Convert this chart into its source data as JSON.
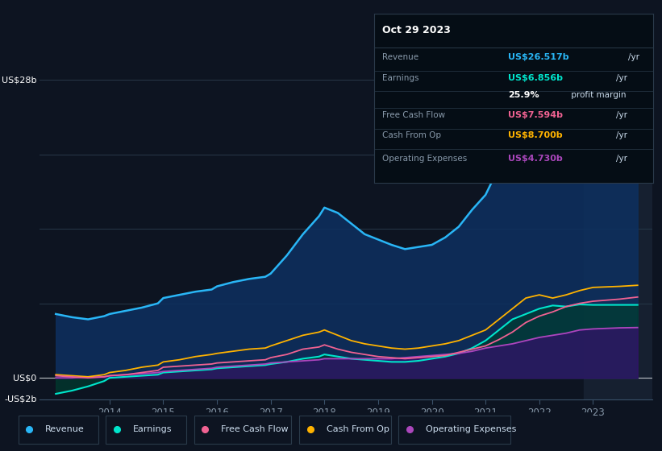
{
  "bg_color": "#0d1421",
  "plot_bg_color": "#0d1421",
  "text_color": "#8899aa",
  "grid_color": "#1a2a3a",
  "zero_line_color": "#ffffff",
  "ylim": [
    -2,
    30
  ],
  "xlim": [
    2012.7,
    2024.1
  ],
  "revenue": {
    "x": [
      2013.0,
      2013.3,
      2013.6,
      2013.9,
      2014.0,
      2014.3,
      2014.6,
      2014.9,
      2015.0,
      2015.3,
      2015.6,
      2015.9,
      2016.0,
      2016.3,
      2016.6,
      2016.9,
      2017.0,
      2017.3,
      2017.6,
      2017.9,
      2018.0,
      2018.25,
      2018.5,
      2018.75,
      2019.0,
      2019.25,
      2019.5,
      2019.75,
      2020.0,
      2020.25,
      2020.5,
      2020.75,
      2021.0,
      2021.25,
      2021.5,
      2021.75,
      2022.0,
      2022.25,
      2022.5,
      2022.75,
      2023.0,
      2023.5,
      2023.83
    ],
    "y": [
      6.0,
      5.7,
      5.5,
      5.8,
      6.0,
      6.3,
      6.6,
      7.0,
      7.5,
      7.8,
      8.1,
      8.3,
      8.6,
      9.0,
      9.3,
      9.5,
      9.8,
      11.5,
      13.5,
      15.2,
      16.0,
      15.5,
      14.5,
      13.5,
      13.0,
      12.5,
      12.1,
      12.3,
      12.5,
      13.2,
      14.2,
      15.8,
      17.2,
      19.8,
      22.2,
      24.2,
      26.0,
      27.0,
      27.5,
      27.8,
      27.5,
      27.0,
      26.517
    ],
    "color": "#29b6f6",
    "fill_color": "#0d3060",
    "fill_alpha": 0.85
  },
  "earnings": {
    "x": [
      2013.0,
      2013.3,
      2013.6,
      2013.9,
      2014.0,
      2014.3,
      2014.6,
      2014.9,
      2015.0,
      2015.3,
      2015.6,
      2015.9,
      2016.0,
      2016.3,
      2016.6,
      2016.9,
      2017.0,
      2017.3,
      2017.6,
      2017.9,
      2018.0,
      2018.25,
      2018.5,
      2018.75,
      2019.0,
      2019.25,
      2019.5,
      2019.75,
      2020.0,
      2020.25,
      2020.5,
      2020.75,
      2021.0,
      2021.25,
      2021.5,
      2021.75,
      2022.0,
      2022.25,
      2022.5,
      2022.75,
      2023.0,
      2023.5,
      2023.83
    ],
    "y": [
      -1.5,
      -1.2,
      -0.8,
      -0.3,
      0.0,
      0.1,
      0.2,
      0.3,
      0.5,
      0.6,
      0.7,
      0.8,
      0.9,
      1.0,
      1.1,
      1.2,
      1.3,
      1.5,
      1.8,
      2.0,
      2.2,
      2.0,
      1.8,
      1.7,
      1.6,
      1.5,
      1.5,
      1.6,
      1.8,
      2.0,
      2.3,
      2.8,
      3.5,
      4.5,
      5.5,
      6.0,
      6.5,
      6.8,
      6.7,
      6.9,
      6.856,
      6.856,
      6.856
    ],
    "color": "#00e5cc",
    "fill_color": "#003d30",
    "fill_alpha": 0.7
  },
  "free_cash_flow": {
    "x": [
      2013.0,
      2013.3,
      2013.6,
      2013.9,
      2014.0,
      2014.3,
      2014.6,
      2014.9,
      2015.0,
      2015.3,
      2015.6,
      2015.9,
      2016.0,
      2016.3,
      2016.6,
      2016.9,
      2017.0,
      2017.3,
      2017.6,
      2017.9,
      2018.0,
      2018.25,
      2018.5,
      2018.75,
      2019.0,
      2019.25,
      2019.5,
      2019.75,
      2020.0,
      2020.25,
      2020.5,
      2020.75,
      2021.0,
      2021.25,
      2021.5,
      2021.75,
      2022.0,
      2022.25,
      2022.5,
      2022.75,
      2023.0,
      2023.5,
      2023.83
    ],
    "y": [
      0.2,
      0.1,
      0.0,
      0.1,
      0.2,
      0.3,
      0.5,
      0.7,
      1.0,
      1.1,
      1.2,
      1.3,
      1.4,
      1.5,
      1.6,
      1.7,
      1.9,
      2.2,
      2.7,
      2.9,
      3.1,
      2.7,
      2.4,
      2.2,
      2.0,
      1.9,
      1.8,
      1.9,
      2.0,
      2.1,
      2.4,
      2.7,
      3.0,
      3.6,
      4.3,
      5.2,
      5.8,
      6.2,
      6.7,
      7.0,
      7.2,
      7.4,
      7.594
    ],
    "color": "#f06292",
    "fill_color": "#5a0030",
    "fill_alpha": 0.5
  },
  "cash_from_op": {
    "x": [
      2013.0,
      2013.3,
      2013.6,
      2013.9,
      2014.0,
      2014.3,
      2014.6,
      2014.9,
      2015.0,
      2015.3,
      2015.6,
      2015.9,
      2016.0,
      2016.3,
      2016.6,
      2016.9,
      2017.0,
      2017.3,
      2017.6,
      2017.9,
      2018.0,
      2018.25,
      2018.5,
      2018.75,
      2019.0,
      2019.25,
      2019.5,
      2019.75,
      2020.0,
      2020.25,
      2020.5,
      2020.75,
      2021.0,
      2021.25,
      2021.5,
      2021.75,
      2022.0,
      2022.25,
      2022.5,
      2022.75,
      2023.0,
      2023.5,
      2023.83
    ],
    "y": [
      0.3,
      0.2,
      0.1,
      0.3,
      0.5,
      0.7,
      1.0,
      1.2,
      1.5,
      1.7,
      2.0,
      2.2,
      2.3,
      2.5,
      2.7,
      2.8,
      3.0,
      3.5,
      4.0,
      4.3,
      4.5,
      4.0,
      3.5,
      3.2,
      3.0,
      2.8,
      2.7,
      2.8,
      3.0,
      3.2,
      3.5,
      4.0,
      4.5,
      5.5,
      6.5,
      7.5,
      7.8,
      7.5,
      7.8,
      8.2,
      8.5,
      8.6,
      8.7
    ],
    "color": "#ffb300",
    "fill_color": "#000000",
    "fill_alpha": 0.0
  },
  "operating_expenses": {
    "x": [
      2013.0,
      2013.3,
      2013.6,
      2013.9,
      2014.0,
      2014.3,
      2014.6,
      2014.9,
      2015.0,
      2015.3,
      2015.6,
      2015.9,
      2016.0,
      2016.3,
      2016.6,
      2016.9,
      2017.0,
      2017.3,
      2017.6,
      2017.9,
      2018.0,
      2018.25,
      2018.5,
      2018.75,
      2019.0,
      2019.25,
      2019.5,
      2019.75,
      2020.0,
      2020.25,
      2020.5,
      2020.75,
      2021.0,
      2021.25,
      2021.5,
      2021.75,
      2022.0,
      2022.25,
      2022.5,
      2022.75,
      2023.0,
      2023.5,
      2023.83
    ],
    "y": [
      0.0,
      0.0,
      0.1,
      0.1,
      0.2,
      0.3,
      0.4,
      0.5,
      0.6,
      0.7,
      0.8,
      0.9,
      1.0,
      1.1,
      1.2,
      1.3,
      1.4,
      1.5,
      1.6,
      1.7,
      1.8,
      1.8,
      1.8,
      1.8,
      1.8,
      1.8,
      1.9,
      2.0,
      2.1,
      2.2,
      2.3,
      2.5,
      2.8,
      3.0,
      3.2,
      3.5,
      3.8,
      4.0,
      4.2,
      4.5,
      4.6,
      4.7,
      4.73
    ],
    "color": "#ab47bc",
    "fill_color": "#4a0080",
    "fill_alpha": 0.5
  },
  "highlight_start": 2022.83,
  "highlight_end": 2024.1,
  "highlight_color": "#162030",
  "info_box": {
    "title": "Oct 29 2023",
    "bg_color": "#050d15",
    "border_color": "#2a3a4a",
    "rows": [
      {
        "label": "Revenue",
        "value": "US$26.517b",
        "unit": "/yr",
        "value_color": "#29b6f6"
      },
      {
        "label": "Earnings",
        "value": "US$6.856b",
        "unit": "/yr",
        "value_color": "#00e5cc"
      },
      {
        "label": "",
        "value": "25.9%",
        "unit": " profit margin",
        "value_color": "#ffffff",
        "bold_value": true
      },
      {
        "label": "Free Cash Flow",
        "value": "US$7.594b",
        "unit": "/yr",
        "value_color": "#f06292"
      },
      {
        "label": "Cash From Op",
        "value": "US$8.700b",
        "unit": "/yr",
        "value_color": "#ffb300"
      },
      {
        "label": "Operating Expenses",
        "value": "US$4.730b",
        "unit": "/yr",
        "value_color": "#ab47bc"
      }
    ]
  },
  "legend": [
    {
      "label": "Revenue",
      "color": "#29b6f6"
    },
    {
      "label": "Earnings",
      "color": "#00e5cc"
    },
    {
      "label": "Free Cash Flow",
      "color": "#f06292"
    },
    {
      "label": "Cash From Op",
      "color": "#ffb300"
    },
    {
      "label": "Operating Expenses",
      "color": "#ab47bc"
    }
  ]
}
